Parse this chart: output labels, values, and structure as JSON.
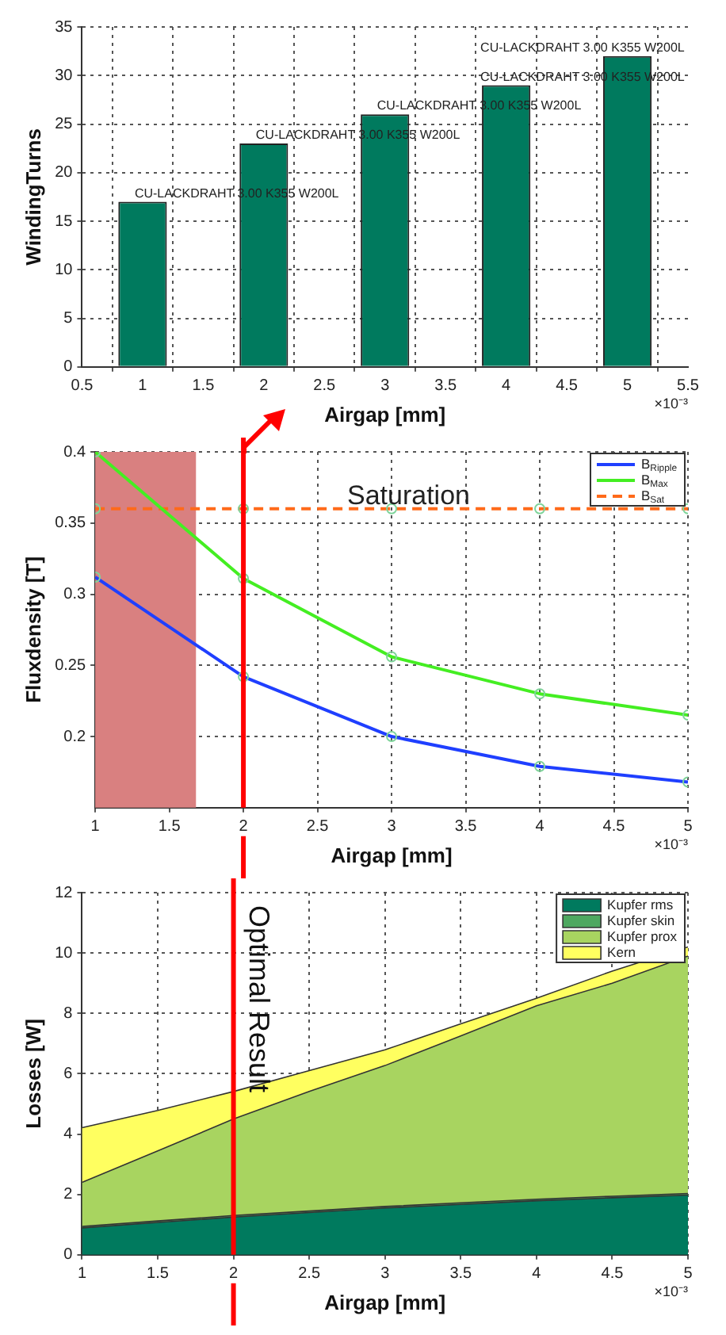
{
  "chart_data": [
    {
      "type": "bar",
      "xlabel": "Airgap [mm]",
      "ylabel": "WindingTurns",
      "x": [
        1,
        2,
        3,
        4,
        5
      ],
      "values": [
        17,
        23,
        26,
        29,
        32
      ],
      "color": "#007a5e",
      "xlim": [
        0.5,
        5.5
      ],
      "xticks": [
        0.5,
        1,
        1.5,
        2,
        2.5,
        3,
        3.5,
        4,
        4.5,
        5,
        5.5
      ],
      "ylim": [
        0,
        35
      ],
      "yticks": [
        0,
        5,
        10,
        15,
        20,
        25,
        30,
        35
      ],
      "grid": true,
      "annotations": [
        {
          "text": "CU-LACKDRAHT 3.00 K355 W200L",
          "x": 1,
          "y": 17
        },
        {
          "text": "CU-LACKDRAHT 3.00 K355 W200L",
          "x": 2,
          "y": 23
        },
        {
          "text": "CU-LACKDRAHT 3.00 K355 W200L",
          "x": 3,
          "y": 26
        },
        {
          "text": "CU-LACKDRAHT 3.00 K355 W200L",
          "x": 4,
          "y": 29
        },
        {
          "text": "CU-LACKDRAHT 3.00 K355 W200L",
          "x": 5,
          "y": 32
        },
        "×10⁻³"
      ]
    },
    {
      "type": "line",
      "xlabel": "Airgap [mm]",
      "ylabel": "Fluxdensity [T]",
      "xlim": [
        1,
        5
      ],
      "xticks": [
        1,
        1.5,
        2,
        2.5,
        3,
        3.5,
        4,
        4.5,
        5
      ],
      "ylim": [
        0.15,
        0.4
      ],
      "yticks": [
        0.2,
        0.25,
        0.3,
        0.35,
        0.4
      ],
      "grid": true,
      "legend": "top right",
      "marker": "circle",
      "series": [
        {
          "name": "B$_{Ripple}$",
          "color": "#1f3fff",
          "x": [
            1,
            2,
            3,
            4,
            5
          ],
          "values": [
            0.312,
            0.242,
            0.2,
            0.179,
            0.168
          ]
        },
        {
          "name": "B$_{Max}$",
          "color": "#44ee22",
          "x": [
            1,
            2,
            3,
            4,
            5
          ],
          "values": [
            0.4,
            0.311,
            0.256,
            0.23,
            0.215
          ]
        },
        {
          "name": "B$_{Sat}$",
          "color": "#ff6a1a",
          "line_style": "dashed",
          "x": [
            1,
            2,
            3,
            4,
            5
          ],
          "values": [
            0.36,
            0.36,
            0.36,
            0.36,
            0.36
          ]
        }
      ],
      "bands": [
        {
          "axis": "x",
          "from": 1,
          "to": 1.68,
          "color": "#d98080"
        }
      ],
      "ref_lines": [
        {
          "axis": "x",
          "value": 2,
          "color": "#ff0000"
        }
      ],
      "annotations": [
        {
          "text": "Saturation",
          "x": 2.7,
          "y": 0.36
        },
        "×10⁻³"
      ]
    },
    {
      "type": "area",
      "stacked": true,
      "xlabel": "Airgap [mm]",
      "ylabel": "Losses [W]",
      "x": [
        1,
        1.5,
        2,
        2.5,
        3,
        3.5,
        4,
        4.5,
        5
      ],
      "xlim": [
        1,
        5
      ],
      "xticks": [
        1,
        1.5,
        2,
        2.5,
        3,
        3.5,
        4,
        4.5,
        5
      ],
      "ylim": [
        0,
        12
      ],
      "yticks": [
        0,
        2,
        4,
        6,
        8,
        10,
        12
      ],
      "grid": true,
      "legend": "top right",
      "series": [
        {
          "name": "Kupfer rms",
          "color": "#007a5e",
          "values": [
            0.89,
            1.07,
            1.25,
            1.4,
            1.55,
            1.67,
            1.79,
            1.89,
            1.98
          ]
        },
        {
          "name": "Kupfer skin",
          "color": "#4ea860",
          "values": [
            0.05,
            0.05,
            0.05,
            0.05,
            0.05,
            0.05,
            0.05,
            0.05,
            0.05
          ]
        },
        {
          "name": "Kupfer prox",
          "color": "#a8d460",
          "values": [
            1.46,
            2.32,
            3.2,
            3.96,
            4.67,
            5.53,
            6.41,
            7.06,
            7.87
          ]
        },
        {
          "name": "Kern",
          "color": "#ffff60",
          "values": [
            1.81,
            1.34,
            0.91,
            0.69,
            0.52,
            0.4,
            0.25,
            0.4,
            0.3
          ]
        }
      ],
      "ref_lines": [
        {
          "axis": "x",
          "value": 2,
          "label": "Optimal Result",
          "color": "#ff0000"
        }
      ],
      "annotations": [
        "×10⁻³"
      ]
    }
  ]
}
